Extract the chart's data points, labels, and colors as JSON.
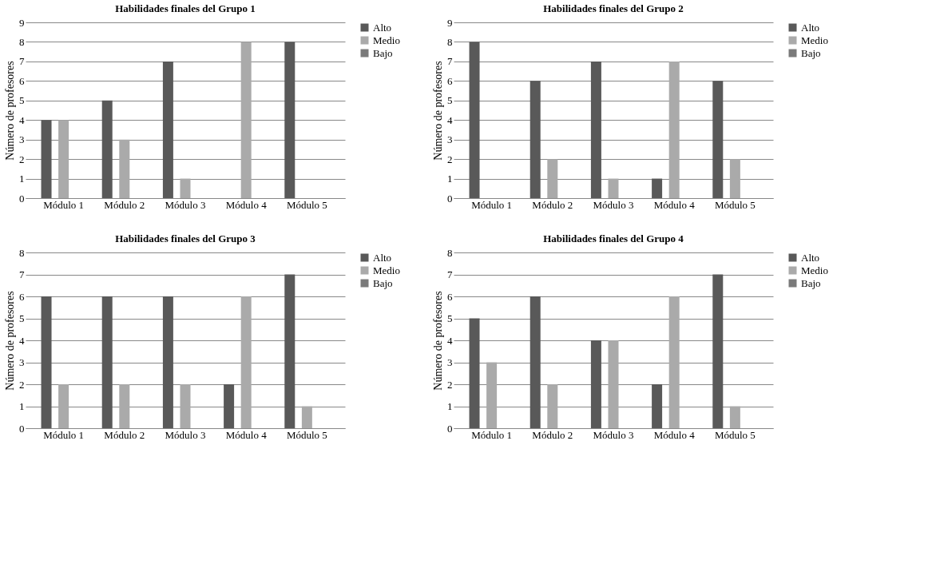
{
  "chart_data": [
    {
      "type": "bar",
      "title": "Habilidades  finales del Grupo  1",
      "ylabel": "Número de profesores",
      "categories": [
        "Módulo 1",
        "Módulo 2",
        "Módulo 3",
        "Módulo 4",
        "Módulo 5"
      ],
      "series": [
        {
          "name": "Alto",
          "color": "#595959",
          "values": [
            4,
            5,
            7,
            0,
            8
          ]
        },
        {
          "name": "Medio",
          "color": "#aaaaaa",
          "values": [
            4,
            3,
            1,
            8,
            0
          ]
        },
        {
          "name": "Bajo",
          "color": "#7a7a7a",
          "values": [
            0,
            0,
            0,
            0,
            0
          ]
        }
      ],
      "ylim": [
        0,
        9
      ],
      "yticks": [
        0,
        1,
        2,
        3,
        4,
        5,
        6,
        7,
        8,
        9
      ],
      "grid": "y",
      "legend": "right"
    },
    {
      "type": "bar",
      "title": "Habilidades  finales del  Grupo  2",
      "ylabel": "Número de profesores",
      "categories": [
        "Módulo 1",
        "Módulo 2",
        "Módulo 3",
        "Módulo 4",
        "Módulo 5"
      ],
      "series": [
        {
          "name": "Alto",
          "color": "#595959",
          "values": [
            8,
            6,
            7,
            1,
            6
          ]
        },
        {
          "name": "Medio",
          "color": "#aaaaaa",
          "values": [
            0,
            2,
            1,
            7,
            2
          ]
        },
        {
          "name": "Bajo",
          "color": "#7a7a7a",
          "values": [
            0,
            0,
            0,
            0,
            0
          ]
        }
      ],
      "ylim": [
        0,
        9
      ],
      "yticks": [
        0,
        1,
        2,
        3,
        4,
        5,
        6,
        7,
        8,
        9
      ],
      "grid": "y",
      "legend": "right"
    },
    {
      "type": "bar",
      "title": "Habilidades  finales del Grupo  3",
      "ylabel": "Número de profesores",
      "categories": [
        "Módulo 1",
        "Módulo 2",
        "Módulo 3",
        "Módulo 4",
        "Módulo 5"
      ],
      "series": [
        {
          "name": "Alto",
          "color": "#595959",
          "values": [
            6,
            6,
            6,
            2,
            7
          ]
        },
        {
          "name": "Medio",
          "color": "#aaaaaa",
          "values": [
            2,
            2,
            2,
            6,
            1
          ]
        },
        {
          "name": "Bajo",
          "color": "#7a7a7a",
          "values": [
            0,
            0,
            0,
            0,
            0
          ]
        }
      ],
      "ylim": [
        0,
        8
      ],
      "yticks": [
        0,
        1,
        2,
        3,
        4,
        5,
        6,
        7,
        8
      ],
      "grid": "y",
      "legend": "right"
    },
    {
      "type": "bar",
      "title": "Habilidades  finales del Grupo  4",
      "ylabel": "Número de profesores",
      "categories": [
        "Módulo 1",
        "Módulo 2",
        "Módulo 3",
        "Módulo 4",
        "Módulo 5"
      ],
      "series": [
        {
          "name": "Alto",
          "color": "#595959",
          "values": [
            5,
            6,
            4,
            2,
            7
          ]
        },
        {
          "name": "Medio",
          "color": "#aaaaaa",
          "values": [
            3,
            2,
            4,
            6,
            1
          ]
        },
        {
          "name": "Bajo",
          "color": "#7a7a7a",
          "values": [
            0,
            0,
            0,
            0,
            0
          ]
        }
      ],
      "ylim": [
        0,
        8
      ],
      "yticks": [
        0,
        1,
        2,
        3,
        4,
        5,
        6,
        7,
        8
      ],
      "grid": "y",
      "legend": "right"
    }
  ]
}
